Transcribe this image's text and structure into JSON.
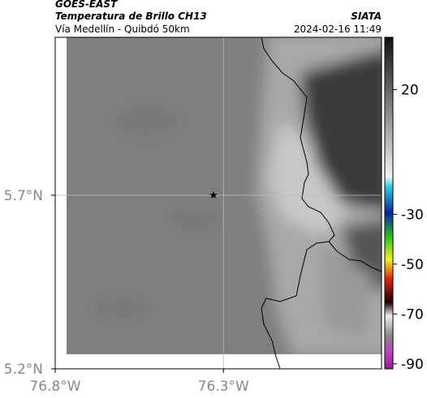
{
  "header": {
    "satellite": "GOES-EAST",
    "product": "Temperatura de Brillo CH13",
    "region": "Vía Medellín - Quibdó 50km",
    "source": "SIATA",
    "timestamp": "2024-02-16 11:49"
  },
  "map": {
    "xlim": [
      -76.8,
      -75.83
    ],
    "ylim": [
      5.2,
      6.155
    ],
    "xticks": [
      {
        "value": -76.8,
        "label": "76.8°W"
      },
      {
        "value": -76.3,
        "label": "76.3°W"
      }
    ],
    "yticks": [
      {
        "value": 5.2,
        "label": "5.2°N"
      },
      {
        "value": 5.7,
        "label": "5.7°N"
      }
    ],
    "grid": true
  },
  "colorbar": {
    "lim": [
      -92,
      41
    ],
    "ticks": [
      20,
      -30,
      -50,
      -70,
      -90
    ]
  }
}
